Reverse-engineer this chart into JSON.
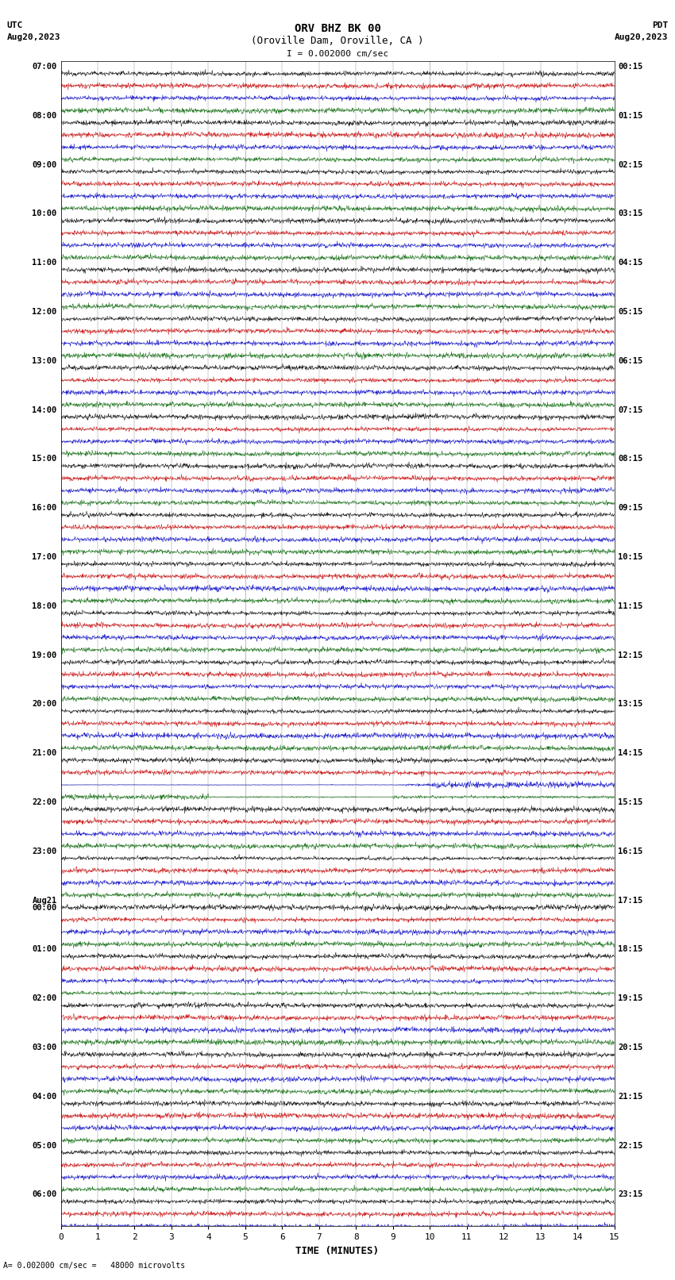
{
  "title_line1": "ORV BHZ BK 00",
  "title_line2": "(Oroville Dam, Oroville, CA )",
  "scale_label": "I = 0.002000 cm/sec",
  "bottom_label": "= 0.002000 cm/sec =   48000 microvolts",
  "utc_label": "UTC",
  "utc_date": "Aug20,2023",
  "pdt_label": "PDT",
  "pdt_date": "Aug20,2023",
  "xlabel": "TIME (MINUTES)",
  "xlim": [
    0,
    15
  ],
  "xticks": [
    0,
    1,
    2,
    3,
    4,
    5,
    6,
    7,
    8,
    9,
    10,
    11,
    12,
    13,
    14,
    15
  ],
  "figsize": [
    8.5,
    16.13
  ],
  "dpi": 100,
  "bg_color": "#ffffff",
  "trace_colors": [
    "#000000",
    "#cc0000",
    "#0000cc",
    "#006600"
  ],
  "utc_times_labeled": [
    "07:00",
    "08:00",
    "09:00",
    "10:00",
    "11:00",
    "12:00",
    "13:00",
    "14:00",
    "15:00",
    "16:00",
    "17:00",
    "18:00",
    "19:00",
    "20:00",
    "21:00",
    "22:00",
    "23:00",
    "Aug21\n00:00",
    "01:00",
    "02:00",
    "03:00",
    "04:00",
    "05:00",
    "06:00"
  ],
  "pdt_times_labeled": [
    "00:15",
    "01:15",
    "02:15",
    "03:15",
    "04:15",
    "05:15",
    "06:15",
    "07:15",
    "08:15",
    "09:15",
    "10:15",
    "11:15",
    "12:15",
    "13:15",
    "14:15",
    "15:15",
    "16:15",
    "17:15",
    "18:15",
    "19:15",
    "20:15",
    "21:15",
    "22:15",
    "23:15"
  ],
  "n_rows": 95,
  "n_hours": 24,
  "noise_amplitude": 0.06,
  "eq_row_black": 56,
  "eq_row_red": 57,
  "eq_row_blue": 58,
  "eq_row_green": 59
}
